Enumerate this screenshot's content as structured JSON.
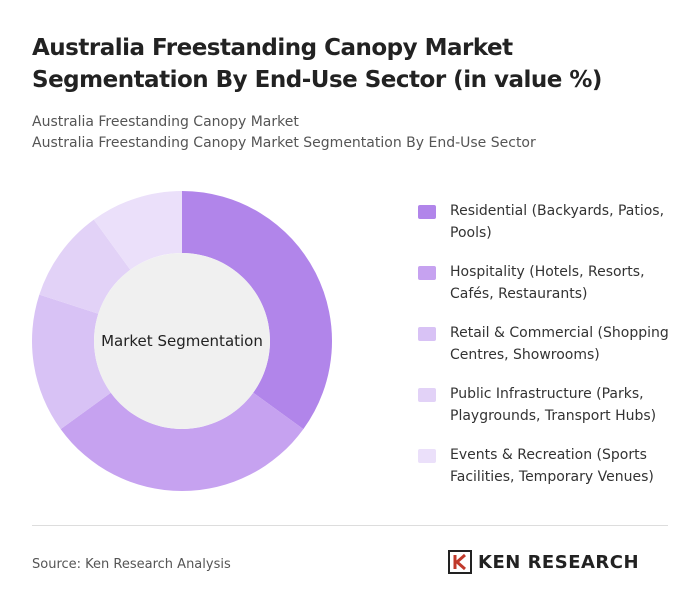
{
  "chart_data": {
    "type": "donut",
    "title": "Australia Freestanding Canopy Market Segmentation By End-Use Sector (in value %)",
    "subtitles": [
      "Australia Freestanding Canopy Market",
      "Australia Freestanding Canopy Market Segmentation By End-Use Sector"
    ],
    "center_label": "Market Segmentation",
    "categories": [
      "Residential (Backyards, Patios, Pools)",
      "Hospitality (Hotels, Resorts, Cafés, Restaurants)",
      "Retail & Commercial (Shopping Centres, Showrooms)",
      "Public Infrastructure (Parks, Playgrounds, Transport Hubs)",
      "Events & Recreation (Sports Facilities, Temporary Venues)"
    ],
    "values": [
      35,
      30,
      15,
      10,
      10
    ],
    "colors": [
      "#b185ea",
      "#c6a2f0",
      "#d8c2f5",
      "#e2d2f7",
      "#ebe0fa"
    ],
    "legend": "right"
  },
  "footer": {
    "source": "Source: Ken Research Analysis",
    "brand": "KEN RESEARCH"
  }
}
